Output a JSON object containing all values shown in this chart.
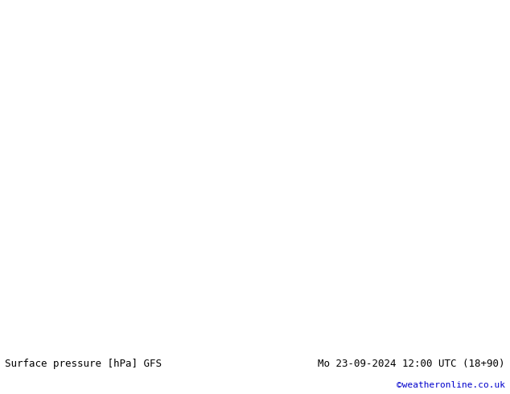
{
  "title_left": "Surface pressure [hPa] GFS",
  "title_right": "Mo 23-09-2024 12:00 UTC (18+90)",
  "copyright": "©weatheronline.co.uk",
  "bg_color": "#ffffff",
  "map_bg": "#d8d8d8",
  "ocean_color": "#ffffff",
  "land_color": "#aad4a0",
  "land_gray_color": "#b0b0b0",
  "isobar_low_color": "#0000cc",
  "isobar_high_color": "#cc0000",
  "isobar_1013_color": "#000000",
  "fill_veryhigh_color": "#ff0000",
  "title_fontsize": 9,
  "copyright_color": "#0000cc",
  "figsize": [
    6.34,
    4.9
  ],
  "dpi": 100
}
